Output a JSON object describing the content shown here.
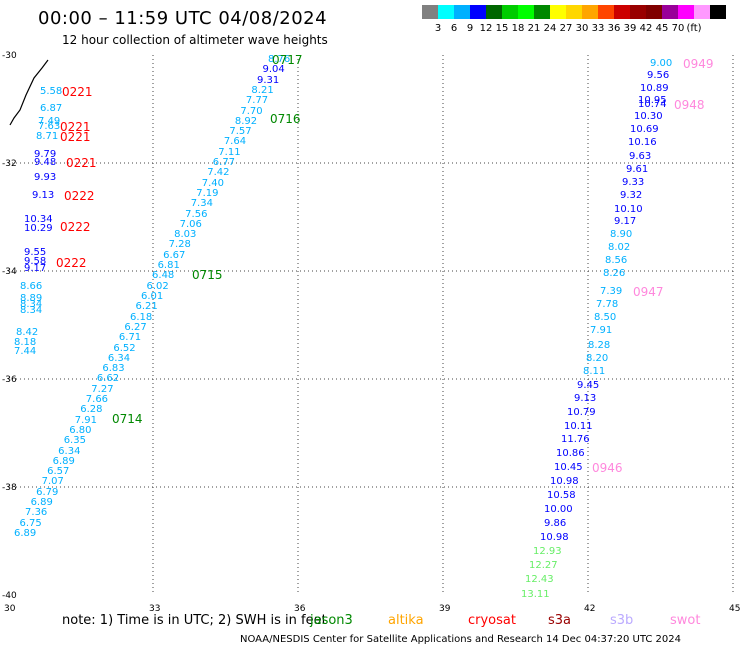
{
  "title": "00:00 – 11:59 UTC 04/08/2024",
  "subtitle": "12 hour collection of altimeter wave heights",
  "scale": {
    "colors": [
      "#808080",
      "#00ffff",
      "#00b0ff",
      "#0000ff",
      "#006600",
      "#00cc00",
      "#00ff00",
      "#008800",
      "#ffff00",
      "#ffd700",
      "#ffa500",
      "#ff4500",
      "#cc0000",
      "#990000",
      "#800000",
      "#990099",
      "#ff00ff",
      "#ff99ff",
      "#000000"
    ],
    "labels": [
      "3",
      "6",
      "9",
      "12",
      "15",
      "18",
      "21",
      "24",
      "27",
      "30",
      "33",
      "36",
      "39",
      "42",
      "45",
      "70",
      "(ft)"
    ]
  },
  "axes": {
    "x_ticks": [
      "30",
      "33",
      "36",
      "39",
      "42",
      "45"
    ],
    "y_ticks": [
      "-30",
      "-32",
      "-34",
      "-36",
      "-38",
      "-40"
    ]
  },
  "tracks": [
    {
      "values": [
        {
          "v": "5.58",
          "c": "#00b0ff"
        },
        {
          "v": "6.87",
          "c": "#00b0ff"
        },
        {
          "v": "7.49",
          "c": "#00b0ff"
        },
        {
          "v": "7.63",
          "c": "#00b0ff"
        },
        {
          "v": "8.71",
          "c": "#00b0ff"
        },
        {
          "v": "9.79",
          "c": "#0000ff"
        },
        {
          "v": "9.48",
          "c": "#0000ff"
        },
        {
          "v": "9.93",
          "c": "#0000ff"
        },
        {
          "v": "9.13",
          "c": "#0000ff"
        },
        {
          "v": "10.34",
          "c": "#0000ff"
        },
        {
          "v": "10.29",
          "c": "#0000ff"
        },
        {
          "v": "9.55",
          "c": "#0000ff"
        },
        {
          "v": "9.58",
          "c": "#0000ff"
        },
        {
          "v": "9.17",
          "c": "#0000ff"
        },
        {
          "v": "8.66",
          "c": "#00b0ff"
        },
        {
          "v": "8.89",
          "c": "#00b0ff"
        },
        {
          "v": "8.34",
          "c": "#00b0ff"
        },
        {
          "v": "8.34",
          "c": "#00b0ff"
        },
        {
          "v": "8.42",
          "c": "#00b0ff"
        },
        {
          "v": "8.18",
          "c": "#00b0ff"
        },
        {
          "v": "7.44",
          "c": "#00b0ff"
        }
      ],
      "labels": [
        {
          "t": "0221",
          "c": "#ff0000"
        },
        {
          "t": "0221",
          "c": "#ff0000"
        },
        {
          "t": "0221",
          "c": "#ff0000"
        },
        {
          "t": "0221",
          "c": "#ff0000"
        },
        {
          "t": "0222",
          "c": "#ff0000"
        },
        {
          "t": "0222",
          "c": "#ff0000"
        },
        {
          "t": "0222",
          "c": "#ff0000"
        }
      ]
    },
    {
      "values": [
        {
          "v": "8.76",
          "c": "#00b0ff"
        },
        {
          "v": "9.04",
          "c": "#0000ff"
        },
        {
          "v": "9.31",
          "c": "#0000ff"
        },
        {
          "v": "8.21",
          "c": "#00b0ff"
        },
        {
          "v": "7.77",
          "c": "#00b0ff"
        },
        {
          "v": "7.70",
          "c": "#00b0ff"
        },
        {
          "v": "8.92",
          "c": "#00b0ff"
        },
        {
          "v": "7.57",
          "c": "#00b0ff"
        },
        {
          "v": "7.64",
          "c": "#00b0ff"
        },
        {
          "v": "7.11",
          "c": "#00b0ff"
        },
        {
          "v": "6.77",
          "c": "#00b0ff"
        },
        {
          "v": "7.42",
          "c": "#00b0ff"
        },
        {
          "v": "7.40",
          "c": "#00b0ff"
        },
        {
          "v": "7.19",
          "c": "#00b0ff"
        },
        {
          "v": "7.34",
          "c": "#00b0ff"
        },
        {
          "v": "7.56",
          "c": "#00b0ff"
        },
        {
          "v": "7.06",
          "c": "#00b0ff"
        },
        {
          "v": "8.03",
          "c": "#00b0ff"
        },
        {
          "v": "7.28",
          "c": "#00b0ff"
        },
        {
          "v": "6.67",
          "c": "#00b0ff"
        },
        {
          "v": "6.81",
          "c": "#00b0ff"
        },
        {
          "v": "6.48",
          "c": "#00b0ff"
        },
        {
          "v": "6.02",
          "c": "#00b0ff"
        },
        {
          "v": "6.01",
          "c": "#00b0ff"
        },
        {
          "v": "6.21",
          "c": "#00b0ff"
        },
        {
          "v": "6.18",
          "c": "#00b0ff"
        },
        {
          "v": "6.27",
          "c": "#00b0ff"
        },
        {
          "v": "6.71",
          "c": "#00b0ff"
        },
        {
          "v": "6.52",
          "c": "#00b0ff"
        },
        {
          "v": "6.34",
          "c": "#00b0ff"
        },
        {
          "v": "6.83",
          "c": "#00b0ff"
        },
        {
          "v": "6.62",
          "c": "#00b0ff"
        },
        {
          "v": "7.27",
          "c": "#00b0ff"
        },
        {
          "v": "7.66",
          "c": "#00b0ff"
        },
        {
          "v": "6.28",
          "c": "#00b0ff"
        },
        {
          "v": "7.91",
          "c": "#00b0ff"
        },
        {
          "v": "6.80",
          "c": "#00b0ff"
        },
        {
          "v": "6.35",
          "c": "#00b0ff"
        },
        {
          "v": "6.34",
          "c": "#00b0ff"
        },
        {
          "v": "6.89",
          "c": "#00b0ff"
        },
        {
          "v": "6.57",
          "c": "#00b0ff"
        },
        {
          "v": "7.07",
          "c": "#00b0ff"
        },
        {
          "v": "6.79",
          "c": "#00b0ff"
        },
        {
          "v": "6.89",
          "c": "#00b0ff"
        },
        {
          "v": "7.36",
          "c": "#00b0ff"
        },
        {
          "v": "6.75",
          "c": "#00b0ff"
        },
        {
          "v": "6.89",
          "c": "#00b0ff"
        }
      ],
      "labels": [
        {
          "t": "0717",
          "c": "#008800"
        },
        {
          "t": "0716",
          "c": "#008800"
        },
        {
          "t": "0715",
          "c": "#008800"
        },
        {
          "t": "0714",
          "c": "#008800"
        }
      ]
    },
    {
      "values": [
        {
          "v": "9.00",
          "c": "#00b0ff"
        },
        {
          "v": "9.56",
          "c": "#0000ff"
        },
        {
          "v": "10.89",
          "c": "#0000ff"
        },
        {
          "v": "10.95",
          "c": "#0000ff"
        },
        {
          "v": "10.74",
          "c": "#0000ff"
        },
        {
          "v": "10.30",
          "c": "#0000ff"
        },
        {
          "v": "10.69",
          "c": "#0000ff"
        },
        {
          "v": "10.16",
          "c": "#0000ff"
        },
        {
          "v": "9.63",
          "c": "#0000ff"
        },
        {
          "v": "9.61",
          "c": "#0000ff"
        },
        {
          "v": "9.33",
          "c": "#0000ff"
        },
        {
          "v": "9.32",
          "c": "#0000ff"
        },
        {
          "v": "10.10",
          "c": "#0000ff"
        },
        {
          "v": "9.17",
          "c": "#0000ff"
        },
        {
          "v": "8.90",
          "c": "#00b0ff"
        },
        {
          "v": "8.02",
          "c": "#00b0ff"
        },
        {
          "v": "8.56",
          "c": "#00b0ff"
        },
        {
          "v": "8.26",
          "c": "#00b0ff"
        },
        {
          "v": "7.39",
          "c": "#00b0ff"
        },
        {
          "v": "7.78",
          "c": "#00b0ff"
        },
        {
          "v": "8.50",
          "c": "#00b0ff"
        },
        {
          "v": "7.91",
          "c": "#00b0ff"
        },
        {
          "v": "8.28",
          "c": "#00b0ff"
        },
        {
          "v": "8.20",
          "c": "#00b0ff"
        },
        {
          "v": "8.11",
          "c": "#00b0ff"
        },
        {
          "v": "9.45",
          "c": "#0000ff"
        },
        {
          "v": "9.13",
          "c": "#0000ff"
        },
        {
          "v": "10.79",
          "c": "#0000ff"
        },
        {
          "v": "10.11",
          "c": "#0000ff"
        },
        {
          "v": "11.76",
          "c": "#0000ff"
        },
        {
          "v": "10.86",
          "c": "#0000ff"
        },
        {
          "v": "10.45",
          "c": "#0000ff"
        },
        {
          "v": "10.98",
          "c": "#0000ff"
        },
        {
          "v": "10.58",
          "c": "#0000ff"
        },
        {
          "v": "10.00",
          "c": "#0000ff"
        },
        {
          "v": "9.86",
          "c": "#0000ff"
        },
        {
          "v": "10.98",
          "c": "#0000ff"
        },
        {
          "v": "12.93",
          "c": "#66ee66"
        },
        {
          "v": "12.27",
          "c": "#66ee66"
        },
        {
          "v": "12.43",
          "c": "#66ee66"
        },
        {
          "v": "13.11",
          "c": "#66ee66"
        }
      ],
      "labels": [
        {
          "t": "0949",
          "c": "#ff88dd"
        },
        {
          "t": "0948",
          "c": "#ff88dd"
        },
        {
          "t": "0947",
          "c": "#ff88dd"
        },
        {
          "t": "0946",
          "c": "#ff88dd"
        }
      ]
    }
  ],
  "note": "note: 1) Time is in UTC; 2) SWH is in feet",
  "legend": [
    {
      "name": "jason3",
      "c": "#008800"
    },
    {
      "name": "altika",
      "c": "#ffa500"
    },
    {
      "name": "cryosat",
      "c": "#ff0000"
    },
    {
      "name": "s3a",
      "c": "#990000"
    },
    {
      "name": "s3b",
      "c": "#bbaaff"
    },
    {
      "name": "swot",
      "c": "#ff88dd"
    }
  ],
  "credit": "NOAA/NESDIS Center for Satellite Applications and Research    14 Dec 04:37:20 UTC 2024"
}
